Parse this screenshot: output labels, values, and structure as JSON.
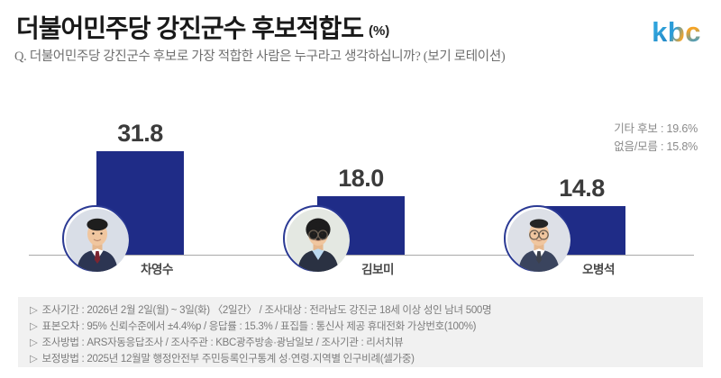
{
  "header": {
    "title": "더불어민주당 강진군수 후보적합도",
    "title_unit": "(%)",
    "logo_letters": [
      "k",
      "b",
      "c"
    ],
    "logo_colors": {
      "blue": "#2b9cd8",
      "orange": "#f4a428"
    }
  },
  "question": "Q. 더불어민주당 강진군수 후보로 가장 적합한 사람은 누구라고 생각하십니까? (보기 로테이션)",
  "side_notes": [
    "기타 후보 : 19.6%",
    "없음/모름 : 15.8%"
  ],
  "chart_data": {
    "type": "bar",
    "title": "더불어민주당 강진군수 후보적합도 (%)",
    "unit": "%",
    "categories": [
      "차영수",
      "김보미",
      "오병석"
    ],
    "values": [
      31.8,
      18.0,
      14.8
    ],
    "value_labels": [
      "31.8",
      "18.0",
      "14.8"
    ],
    "other_candidates_pct": 19.6,
    "none_dont_know_pct": 15.8,
    "bar_color": "#1f2c87",
    "avatar_ring_color": "#2b3a94",
    "candidates": [
      {
        "name": "차영수",
        "value": 31.8,
        "value_label": "31.8",
        "photo": "male-red-tie"
      },
      {
        "name": "김보미",
        "value": 18.0,
        "value_label": "18.0",
        "photo": "female-glasses"
      },
      {
        "name": "오병석",
        "value": 14.8,
        "value_label": "14.8",
        "photo": "male-glasses"
      }
    ]
  },
  "footer": {
    "bullet": "▷",
    "lines": [
      "조사기간 : 2026년 2월 2일(월) ~ 3일(화) 〈2일간〉 / 조사대상 : 전라남도 강진군 18세 이상 성인 남녀 500명",
      "표본오차 : 95% 신뢰수준에서 ±4.4%p / 응답률 : 15.3% / 표집틀 : 통신사 제공 휴대전화 가상번호(100%)",
      "조사방법 : ARS자동응답조사 / 조사주관 : KBC광주방송·광남일보 / 조사기관 : 리서치뷰",
      "보정방법 : 2025년 12월말 행정안전부 주민등록인구통계 성·연령·지역별 인구비례(셀가중)"
    ]
  }
}
